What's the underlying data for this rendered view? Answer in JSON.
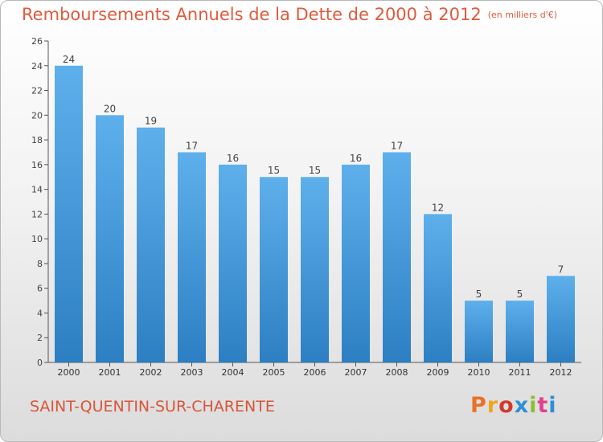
{
  "title": "Remboursements Annuels de la Dette de 2000 à 2012",
  "subtitle": "(en milliers d'€)",
  "location": "SAINT-QUENTIN-SUR-CHARENTE",
  "brand": "Proxiti",
  "colors": {
    "title": "#e05a3e",
    "bar_top": "#5eb0ec",
    "bar_bottom": "#2c7fc2",
    "brand_letters": [
      "#e8722a",
      "#f2a51c",
      "#cf3b2e",
      "#2e90d6",
      "#8cbf2f",
      "#e2418f",
      "#2e90d6"
    ]
  },
  "chart_data": {
    "type": "bar",
    "categories": [
      "2000",
      "2001",
      "2002",
      "2003",
      "2004",
      "2005",
      "2006",
      "2007",
      "2008",
      "2009",
      "2010",
      "2011",
      "2012"
    ],
    "values": [
      24,
      20,
      19,
      17,
      16,
      15,
      15,
      16,
      17,
      12,
      5,
      5,
      7
    ],
    "title": "Remboursements Annuels de la Dette de 2000 à 2012",
    "subtitle": "(en milliers d'€)",
    "xlabel": "",
    "ylabel": "",
    "ylim": [
      0,
      26
    ],
    "yticks": [
      0,
      2,
      4,
      6,
      8,
      10,
      12,
      14,
      16,
      18,
      20,
      22,
      24,
      26
    ],
    "grid": false,
    "data_labels": true,
    "legend": "none"
  }
}
